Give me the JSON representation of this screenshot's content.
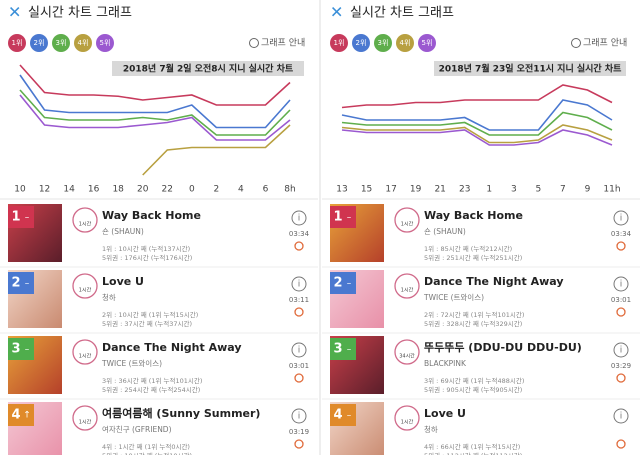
{
  "panels": [
    {
      "header": "실시간 차트 그래프",
      "guide": "그래프 안내",
      "chart": {
        "type": "line",
        "annotation": "2018년 7월 2일 오전8시 지니 실시간 차트",
        "x": [
          "10",
          "12",
          "14",
          "16",
          "18",
          "20",
          "22",
          "0",
          "2",
          "4",
          "6",
          "8h"
        ],
        "ylim": [
          0,
          100
        ],
        "series": [
          {
            "name": "1위",
            "color": "#c73a5c",
            "values": [
              92,
              70,
              68,
              68,
              67,
              64,
              66,
              68,
              60,
              60,
              60,
              78
            ]
          },
          {
            "name": "2위",
            "color": "#4a78d0",
            "values": [
              84,
              56,
              54,
              54,
              54,
              54,
              54,
              60,
              42,
              42,
              42,
              64
            ]
          },
          {
            "name": "3위",
            "color": "#5fae4c",
            "values": [
              72,
              50,
              48,
              48,
              48,
              50,
              48,
              52,
              36,
              36,
              36,
              56
            ]
          },
          {
            "name": "4위",
            "color": "#b8a040",
            "values": [
              null,
              null,
              null,
              null,
              null,
              4,
              24,
              26,
              26,
              26,
              26,
              44
            ]
          },
          {
            "name": "5위",
            "color": "#9b59d0",
            "values": [
              68,
              44,
              42,
              42,
              42,
              44,
              46,
              50,
              32,
              32,
              32,
              48
            ]
          }
        ]
      },
      "songs": [
        {
          "rank": "1",
          "change": "–",
          "badge": "1시간",
          "title": "Way Back Home",
          "artist": "숀 (SHAUN)",
          "stat1": "1위 : 10시간 째 (누적137시간)",
          "stat2": "5위권 : 176시간 (누적176시간)",
          "time": "03:34"
        },
        {
          "rank": "2",
          "change": "–",
          "badge": "1시간",
          "title": "Love U",
          "artist": "청하",
          "stat1": "2위 : 10시간 째 (1위 누적15시간)",
          "stat2": "5위권 : 37시간 째 (누적37시간)",
          "time": "03:11"
        },
        {
          "rank": "3",
          "change": "–",
          "badge": "1시간",
          "title": "Dance The Night Away",
          "artist": "TWICE (트와이스)",
          "stat1": "3위 : 36시간 째 (1위 누적101시간)",
          "stat2": "5위권 : 254시간 째 (누적254시간)",
          "time": "03:01"
        },
        {
          "rank": "4",
          "change": "↑",
          "badge": "1시간",
          "title": "여름여름해 (Sunny Summer)",
          "artist": "여자친구 (GFRIEND)",
          "stat1": "4위 : 1시간 째 (1위 누적0시간)",
          "stat2": "5위권 : 10시간 째 (누적10시간)",
          "time": "03:19"
        }
      ]
    },
    {
      "header": "실시간 차트 그래프",
      "guide": "그래프 안내",
      "chart": {
        "type": "line",
        "annotation": "2018년 7월 23일 오전11시 지니 실시간 차트",
        "x": [
          "13",
          "15",
          "17",
          "19",
          "21",
          "23",
          "1",
          "3",
          "5",
          "7",
          "9",
          "11h"
        ],
        "ylim": [
          0,
          100
        ],
        "series": [
          {
            "name": "1위",
            "color": "#c73a5c",
            "values": [
              58,
              60,
              60,
              62,
              62,
              64,
              64,
              64,
              64,
              76,
              72,
              62
            ]
          },
          {
            "name": "2위",
            "color": "#4a78d0",
            "values": [
              52,
              48,
              48,
              48,
              48,
              50,
              40,
              40,
              40,
              64,
              60,
              48
            ]
          },
          {
            "name": "3위",
            "color": "#5fae4c",
            "values": [
              46,
              44,
              44,
              44,
              44,
              46,
              36,
              36,
              36,
              54,
              50,
              40
            ]
          },
          {
            "name": "4위",
            "color": "#b8a040",
            "values": [
              42,
              40,
              40,
              40,
              40,
              42,
              30,
              30,
              32,
              44,
              40,
              32
            ]
          },
          {
            "name": "5위",
            "color": "#9b59d0",
            "values": [
              40,
              38,
              38,
              38,
              38,
              40,
              28,
              28,
              30,
              40,
              36,
              28
            ]
          }
        ]
      },
      "songs": [
        {
          "rank": "1",
          "change": "–",
          "badge": "1시간",
          "title": "Way Back Home",
          "artist": "숀 (SHAUN)",
          "stat1": "1위 : 85시간 째 (누적212시간)",
          "stat2": "5위권 : 251시간 째 (누적251시간)",
          "time": "03:34"
        },
        {
          "rank": "2",
          "change": "–",
          "badge": "1시간",
          "title": "Dance The Night Away",
          "artist": "TWICE (트와이스)",
          "stat1": "2위 : 72시간 째 (1위 누적101시간)",
          "stat2": "5위권 : 328시간 째 (누적329시간)",
          "time": "03:01"
        },
        {
          "rank": "3",
          "change": "–",
          "badge": "34시간",
          "title": "뚜두뚜두 (DDU-DU DDU-DU)",
          "artist": "BLACKPINK",
          "stat1": "3위 : 69시간 째 (1위 누적488시간)",
          "stat2": "5위권 : 905시간 째 (누적905시간)",
          "time": "03:29"
        },
        {
          "rank": "4",
          "change": "–",
          "badge": "1시간",
          "title": "Love U",
          "artist": "청하",
          "stat1": "4위 : 66시간 째 (1위 누적15시간)",
          "stat2": "5위권 : 112시간 째 (누적112시간)",
          "time": null
        }
      ]
    }
  ]
}
